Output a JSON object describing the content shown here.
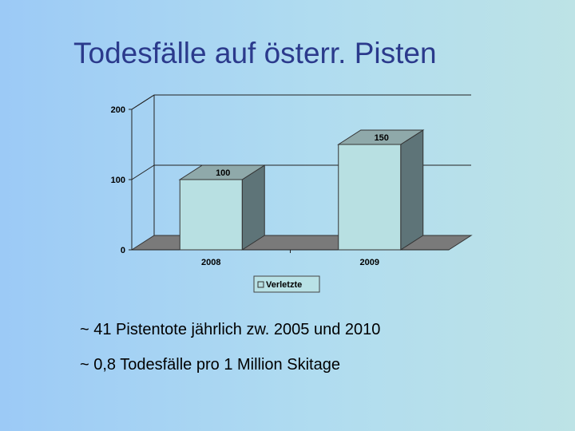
{
  "slide": {
    "title": "Todesfälle auf österr. Pisten",
    "bullets": [
      "~ 41 Pistentote jährlich zw. 2005 und 2010",
      "~ 0,8 Todesfälle pro 1 Million Skitage"
    ]
  },
  "chart_data": {
    "type": "bar",
    "categories": [
      "2008",
      "2009"
    ],
    "series": [
      {
        "name": "Verletzte",
        "values": [
          100,
          150
        ]
      }
    ],
    "ylim": [
      0,
      200
    ],
    "yticks": [
      0,
      100,
      200
    ],
    "xlabel": "",
    "ylabel": "",
    "grid": true,
    "legend": "bottom",
    "style": "3d",
    "data_labels": true,
    "colors": {
      "bar_front": "#b8e0e2",
      "bar_side": "#5e7478",
      "bar_top": "#8fa9aa",
      "floor": "#7a7a7a"
    }
  }
}
